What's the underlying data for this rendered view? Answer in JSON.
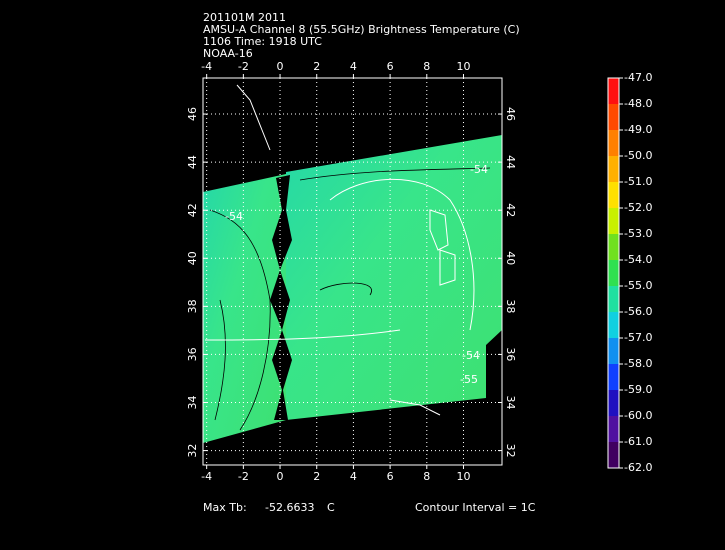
{
  "title_lines": [
    "201101M 2011",
    "AMSU-A Channel 8 (55.5GHz) Brightness Temperature (C)",
    "1106 Time: 1918 UTC",
    "NOAA-16"
  ],
  "map": {
    "xlim": [
      -4.2,
      12.1
    ],
    "ylim": [
      31.4,
      47.5
    ],
    "xticks": [
      -4,
      -2,
      0,
      2,
      4,
      6,
      8,
      10
    ],
    "yticks": [
      32,
      34,
      36,
      38,
      40,
      42,
      44,
      46
    ],
    "grid": true,
    "contour_labels": [
      "-54",
      "-54",
      "-54",
      "-55"
    ]
  },
  "colorbar": {
    "ticks": [
      {
        "value": -47,
        "label": "-47.0"
      },
      {
        "value": -48,
        "label": "-48.0"
      },
      {
        "value": -49,
        "label": "-49.0"
      },
      {
        "value": -50,
        "label": "-50.0"
      },
      {
        "value": -51,
        "label": "-51.0"
      },
      {
        "value": -52,
        "label": "-52.0"
      },
      {
        "value": -53,
        "label": "-53.0"
      },
      {
        "value": -54,
        "label": "-54.0"
      },
      {
        "value": -55,
        "label": "-55.0"
      },
      {
        "value": -56,
        "label": "-56.0"
      },
      {
        "value": -57,
        "label": "-57.0"
      },
      {
        "value": -58,
        "label": "-58.0"
      },
      {
        "value": -59,
        "label": "-59.0"
      },
      {
        "value": -60,
        "label": "-60.0"
      },
      {
        "value": -61,
        "label": "-61.0"
      },
      {
        "value": -62,
        "label": "-62.0"
      }
    ],
    "colors": [
      "#ff1010",
      "#ff4a00",
      "#ff8000",
      "#ffb000",
      "#ffe000",
      "#c8f000",
      "#70e020",
      "#30e050",
      "#20e0a0",
      "#10d0e0",
      "#1090f0",
      "#1040ff",
      "#2010c0",
      "#5010a0",
      "#400060",
      "#f0f0f0"
    ]
  },
  "footer": {
    "max_label": "Max Tb:",
    "max_value": -52.6633,
    "max_unit": "C",
    "contour_interval": "Contour Interval = 1C"
  }
}
